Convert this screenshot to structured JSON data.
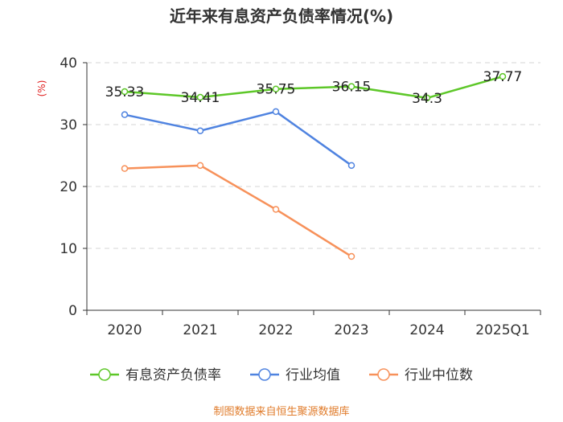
{
  "chart_data": {
    "type": "line",
    "title": "近年来有息资产负债率情况(%)",
    "ylabel": "(%)",
    "xlabel": "",
    "categories": [
      "2020",
      "2021",
      "2022",
      "2023",
      "2024",
      "2025Q1"
    ],
    "ylim": [
      0,
      40
    ],
    "yticks": [
      0,
      10,
      20,
      30,
      40
    ],
    "grid": true,
    "legend_position": "bottom",
    "series": [
      {
        "name": "有息资产负债率",
        "color": "#5dc728",
        "values": [
          35.33,
          34.41,
          35.75,
          36.15,
          34.3,
          37.77
        ],
        "labels": [
          "35.33",
          "34.41",
          "35.75",
          "36.15",
          "34.3",
          "37.77"
        ],
        "show_labels": true
      },
      {
        "name": "行业均值",
        "color": "#4f83e0",
        "values": [
          31.6,
          29.0,
          32.1,
          23.4,
          null,
          null
        ],
        "show_labels": false
      },
      {
        "name": "行业中位数",
        "color": "#f7915a",
        "values": [
          22.9,
          23.4,
          16.3,
          8.7,
          null,
          null
        ],
        "show_labels": false
      }
    ],
    "source": "制图数据来自恒生聚源数据库"
  }
}
